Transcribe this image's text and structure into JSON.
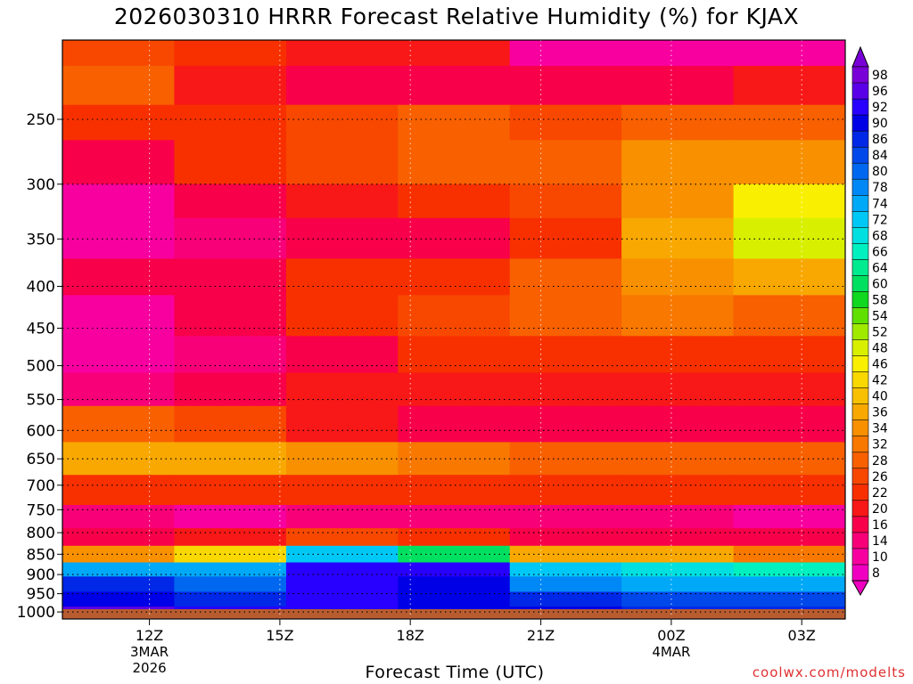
{
  "chart_data": {
    "type": "heatmap",
    "title": "2026030310 HRRR Forecast Relative Humidity (%) for KJAX",
    "xlabel": "Forecast Time (UTC)",
    "ylabel": "",
    "watermark": "coolwx.com/modelts",
    "x_ticks": [
      {
        "hour": 12,
        "label": "12Z",
        "sub1": "3MAR",
        "sub2": "2026"
      },
      {
        "hour": 15,
        "label": "15Z",
        "sub1": "",
        "sub2": ""
      },
      {
        "hour": 18,
        "label": "18Z",
        "sub1": "",
        "sub2": ""
      },
      {
        "hour": 21,
        "label": "21Z",
        "sub1": "",
        "sub2": ""
      },
      {
        "hour": 24,
        "label": "00Z",
        "sub1": "4MAR",
        "sub2": ""
      },
      {
        "hour": 27,
        "label": "03Z",
        "sub1": "",
        "sub2": ""
      }
    ],
    "xlim": [
      10,
      28
    ],
    "y_ticks": [
      250,
      300,
      350,
      400,
      450,
      500,
      550,
      600,
      650,
      700,
      750,
      800,
      850,
      900,
      950,
      1000
    ],
    "ylim_hpa": [
      200,
      1020
    ],
    "y_scale": "log-pressure",
    "colorbar_levels": [
      98,
      96,
      92,
      90,
      86,
      84,
      80,
      78,
      74,
      72,
      68,
      66,
      64,
      60,
      58,
      54,
      52,
      48,
      46,
      42,
      40,
      36,
      34,
      32,
      28,
      26,
      22,
      20,
      16,
      14,
      10,
      8
    ],
    "colorbar_colors": [
      "#7a00d8",
      "#5a00e8",
      "#2800ff",
      "#0000e6",
      "#0028e6",
      "#0048ea",
      "#0068f0",
      "#0088f6",
      "#00a8f8",
      "#00c8f6",
      "#00e0e0",
      "#00f0c0",
      "#00ea90",
      "#00e060",
      "#10d820",
      "#60e000",
      "#a0ea00",
      "#d8f000",
      "#f8f000",
      "#f8d800",
      "#f8c000",
      "#f8a800",
      "#f89000",
      "#f87800",
      "#f86000",
      "#f84800",
      "#f83000",
      "#f81818",
      "#f8004a",
      "#f80078",
      "#f800a0",
      "#f000c0"
    ],
    "colors": {
      "ground": "#b85c30",
      "grid": "#000000",
      "watermark": "#e03030"
    },
    "bands": [
      {
        "p_top": 200,
        "p_bot": 215,
        "rh": [
          26,
          22,
          20,
          20,
          12,
          10,
          10
        ]
      },
      {
        "p_top": 215,
        "p_bot": 240,
        "rh": [
          30,
          20,
          18,
          16,
          16,
          16,
          20
        ]
      },
      {
        "p_top": 240,
        "p_bot": 265,
        "rh": [
          24,
          22,
          26,
          28,
          26,
          28,
          30
        ]
      },
      {
        "p_top": 265,
        "p_bot": 300,
        "rh": [
          18,
          22,
          26,
          28,
          30,
          34,
          34
        ]
      },
      {
        "p_top": 300,
        "p_bot": 330,
        "rh": [
          12,
          18,
          20,
          22,
          26,
          34,
          46
        ]
      },
      {
        "p_top": 330,
        "p_bot": 370,
        "rh": [
          10,
          14,
          16,
          18,
          24,
          36,
          48
        ]
      },
      {
        "p_top": 370,
        "p_bot": 410,
        "rh": [
          16,
          18,
          22,
          24,
          28,
          34,
          36
        ]
      },
      {
        "p_top": 410,
        "p_bot": 460,
        "rh": [
          12,
          16,
          24,
          26,
          28,
          32,
          30
        ]
      },
      {
        "p_top": 460,
        "p_bot": 510,
        "rh": [
          10,
          14,
          18,
          22,
          24,
          24,
          24
        ]
      },
      {
        "p_top": 510,
        "p_bot": 560,
        "rh": [
          14,
          18,
          20,
          20,
          20,
          20,
          20
        ]
      },
      {
        "p_top": 560,
        "p_bot": 620,
        "rh": [
          30,
          26,
          20,
          18,
          18,
          18,
          18
        ]
      },
      {
        "p_top": 620,
        "p_bot": 680,
        "rh": [
          36,
          38,
          34,
          32,
          30,
          30,
          28
        ]
      },
      {
        "p_top": 680,
        "p_bot": 740,
        "rh": [
          22,
          22,
          24,
          22,
          22,
          22,
          22
        ]
      },
      {
        "p_top": 740,
        "p_bot": 790,
        "rh": [
          14,
          12,
          14,
          14,
          14,
          14,
          12
        ]
      },
      {
        "p_top": 790,
        "p_bot": 830,
        "rh": [
          18,
          20,
          26,
          22,
          18,
          18,
          18
        ]
      },
      {
        "p_top": 830,
        "p_bot": 870,
        "rh": [
          34,
          44,
          72,
          60,
          38,
          36,
          32
        ]
      },
      {
        "p_top": 870,
        "p_bot": 905,
        "rh": [
          76,
          76,
          94,
          92,
          72,
          70,
          66
        ]
      },
      {
        "p_top": 905,
        "p_bot": 945,
        "rh": [
          86,
          80,
          92,
          90,
          78,
          74,
          74
        ]
      },
      {
        "p_top": 945,
        "p_bot": 985,
        "rh": [
          90,
          88,
          92,
          90,
          86,
          84,
          84
        ]
      },
      {
        "p_top": 985,
        "p_bot": 1010,
        "rh": [
          96,
          94,
          92,
          90,
          90,
          88,
          88
        ]
      }
    ]
  }
}
